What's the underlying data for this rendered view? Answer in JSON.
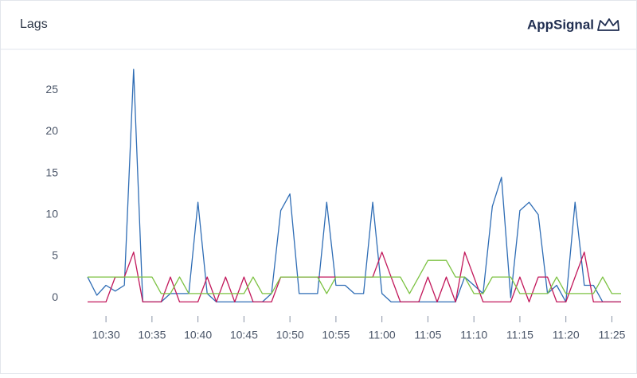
{
  "header": {
    "title": "Lags",
    "brand": "AppSignal"
  },
  "chart_data": {
    "type": "line",
    "x": [
      628,
      629,
      630,
      631,
      632,
      633,
      634,
      635,
      636,
      637,
      638,
      639,
      640,
      641,
      642,
      643,
      644,
      645,
      646,
      647,
      648,
      649,
      650,
      651,
      652,
      653,
      654,
      655,
      656,
      657,
      658,
      659,
      660,
      661,
      662,
      663,
      664,
      665,
      666,
      667,
      668,
      669,
      670,
      671,
      672,
      673,
      674,
      675,
      676,
      677,
      678,
      679,
      680,
      681,
      682,
      683,
      684,
      685,
      686
    ],
    "series": [
      {
        "color": "#2f6db5",
        "values": [
          2.5,
          0.3,
          1.5,
          0.8,
          1.5,
          27.5,
          -0.5,
          -0.5,
          -0.5,
          0.5,
          0.5,
          0.5,
          11.5,
          0.5,
          -0.5,
          -0.5,
          -0.5,
          -0.5,
          -0.5,
          -0.5,
          0.5,
          10.5,
          12.5,
          0.5,
          0.5,
          0.5,
          11.5,
          1.5,
          1.5,
          0.5,
          0.5,
          11.5,
          0.5,
          -0.5,
          -0.5,
          -0.5,
          -0.5,
          -0.5,
          -0.5,
          -0.5,
          -0.5,
          2.5,
          1.5,
          0.5,
          11,
          14.5,
          0,
          10.5,
          11.5,
          10,
          0.5,
          1.5,
          -0.5,
          11.5,
          1.5,
          1.5,
          -0.5,
          -0.5,
          -0.5
        ]
      },
      {
        "color": "#c2185b",
        "values": [
          -0.5,
          -0.5,
          -0.5,
          2.5,
          2.5,
          5.5,
          -0.5,
          -0.5,
          -0.5,
          2.5,
          -0.5,
          -0.5,
          -0.5,
          2.5,
          -0.5,
          2.5,
          -0.5,
          2.5,
          -0.5,
          -0.5,
          -0.5,
          2.5,
          2.5,
          2.5,
          2.5,
          2.5,
          2.5,
          2.5,
          2.5,
          2.5,
          2.5,
          2.5,
          5.5,
          2.5,
          -0.5,
          -0.5,
          -0.5,
          2.5,
          -0.5,
          2.5,
          -0.5,
          5.5,
          2.5,
          -0.5,
          -0.5,
          -0.5,
          -0.5,
          2.5,
          -0.5,
          2.5,
          2.5,
          -0.5,
          -0.5,
          2.5,
          5.5,
          -0.5,
          -0.5,
          -0.5,
          -0.5
        ]
      },
      {
        "color": "#7cc242",
        "values": [
          2.5,
          2.5,
          2.5,
          2.5,
          2.5,
          2.5,
          2.5,
          2.5,
          0.5,
          0.5,
          2.5,
          0.5,
          0.5,
          0.5,
          0.5,
          0.5,
          0.5,
          0.5,
          2.5,
          0.5,
          0.5,
          2.5,
          2.5,
          2.5,
          2.5,
          2.5,
          0.5,
          2.5,
          2.5,
          2.5,
          2.5,
          2.5,
          2.5,
          2.5,
          2.5,
          0.5,
          2.5,
          4.5,
          4.5,
          4.5,
          2.5,
          2.5,
          0.5,
          0.5,
          2.5,
          2.5,
          2.5,
          0.5,
          0.5,
          0.5,
          0.5,
          2.5,
          0.5,
          0.5,
          0.5,
          0.5,
          2.5,
          0.5,
          0.5
        ]
      }
    ],
    "xlim": [
      628,
      686
    ],
    "xticks": [
      {
        "value": 630,
        "label": "10:30"
      },
      {
        "value": 635,
        "label": "10:35"
      },
      {
        "value": 640,
        "label": "10:40"
      },
      {
        "value": 645,
        "label": "10:45"
      },
      {
        "value": 650,
        "label": "10:50"
      },
      {
        "value": 655,
        "label": "10:55"
      },
      {
        "value": 660,
        "label": "11:00"
      },
      {
        "value": 665,
        "label": "11:05"
      },
      {
        "value": 670,
        "label": "11:10"
      },
      {
        "value": 675,
        "label": "11:15"
      },
      {
        "value": 680,
        "label": "11:20"
      },
      {
        "value": 685,
        "label": "11:25"
      }
    ],
    "ylim": [
      -2,
      28
    ],
    "yticks": [
      0,
      5,
      10,
      15,
      20,
      25
    ]
  }
}
